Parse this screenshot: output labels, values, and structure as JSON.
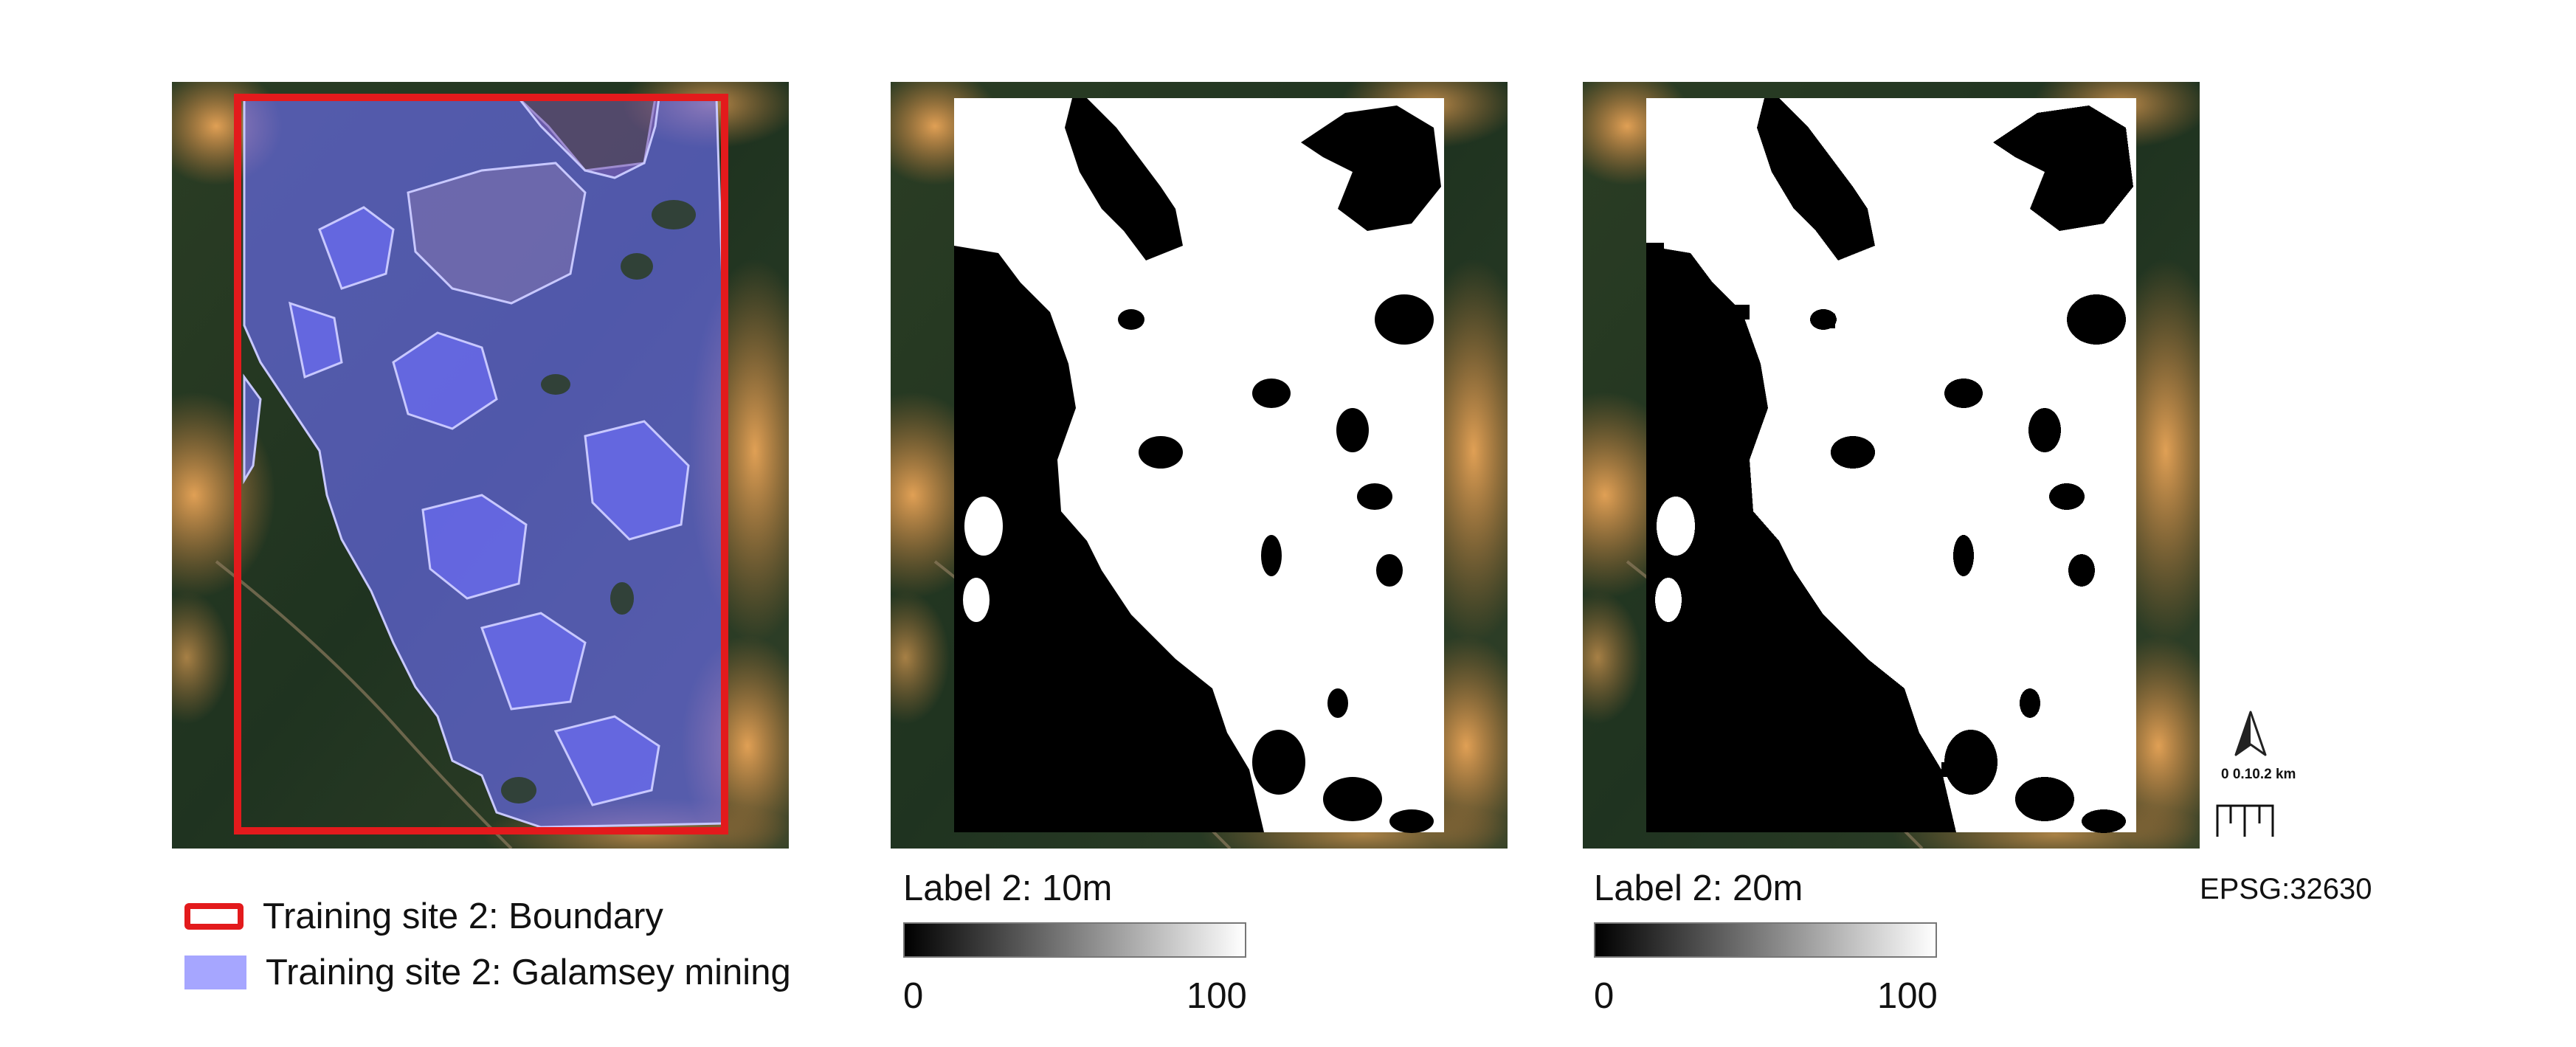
{
  "legend": {
    "boundary_label": "Training site 2: Boundary",
    "mining_label": "Training site 2: Galamsey mining",
    "boundary_color": "#e31a1c",
    "mining_color": "#a6a6ff"
  },
  "ramp_10m": {
    "title": "Label 2: 10m",
    "min": "0",
    "max": "100"
  },
  "ramp_20m": {
    "title": "Label 2: 20m",
    "min": "0",
    "max": "100"
  },
  "scale_bar": {
    "label": "0 0.10.2 km"
  },
  "crs": "EPSG:32630",
  "icons": {
    "north_arrow": "north-arrow-icon"
  },
  "colors": {
    "mask_black": "#000000",
    "mask_white": "#ffffff",
    "vegetation": "#253a1f",
    "bare_soil": "#d08a45"
  }
}
